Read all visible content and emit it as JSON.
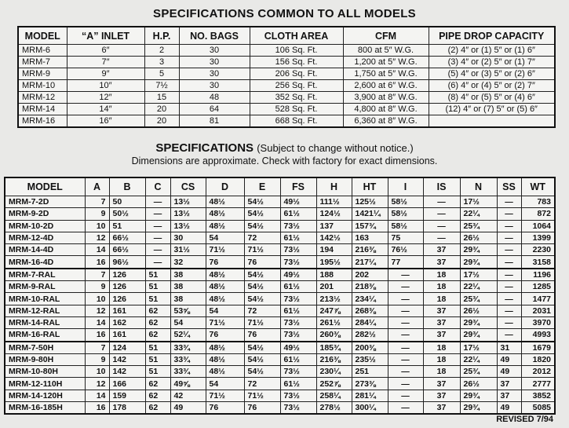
{
  "common": {
    "title": "SPECIFICATIONS COMMON TO ALL MODELS",
    "headers": [
      "MODEL",
      "“A” INLET",
      "H.P.",
      "NO. BAGS",
      "CLOTH AREA",
      "CFM",
      "PIPE DROP CAPACITY"
    ],
    "rows": [
      [
        "MRM-6",
        "6″",
        "2",
        "30",
        "106 Sq. Ft.",
        "800 at 5″ W.G.",
        "(2) 4″ or (1) 5″ or (1) 6″"
      ],
      [
        "MRM-7",
        "7″",
        "3",
        "30",
        "156 Sq. Ft.",
        "1,200 at 5″ W.G.",
        "(3) 4″ or (2) 5″ or (1) 7″"
      ],
      [
        "MRM-9",
        "9″",
        "5",
        "30",
        "206 Sq. Ft.",
        "1,750 at 5″ W.G.",
        "(5) 4″ or (3) 5″ or (2) 6″"
      ],
      [
        "MRM-10",
        "10″",
        "7½",
        "30",
        "256 Sq. Ft.",
        "2,600 at 6″ W.G.",
        "(6) 4″ or (4) 5″ or (2) 7″"
      ],
      [
        "MRM-12",
        "12″",
        "15",
        "48",
        "352 Sq. Ft.",
        "3,900 at 8″ W.G.",
        "(8) 4″ or (5) 5″ or (4) 6″"
      ],
      [
        "MRM-14",
        "14″",
        "20",
        "64",
        "528 Sq. Ft.",
        "4,800 at 8″ W.G.",
        "(12) 4″ or (7) 5″ or (5) 6″"
      ],
      [
        "MRM-16",
        "16″",
        "20",
        "81",
        "668 Sq. Ft.",
        "6,360 at 8″ W.G.",
        ""
      ]
    ]
  },
  "specs": {
    "title": "SPECIFICATIONS",
    "note": "(Subject to change without notice.)",
    "subtitle": "Dimensions are approximate. Check with factory for exact dimensions.",
    "headers": [
      "MODEL",
      "A",
      "B",
      "C",
      "CS",
      "D",
      "E",
      "FS",
      "H",
      "HT",
      "I",
      "IS",
      "N",
      "SS",
      "WT"
    ],
    "rows": [
      [
        "MRM-7-2D",
        "7",
        "50",
        "—",
        "13½",
        "48½",
        "54½",
        "49½",
        "111½",
        "125½",
        "58½",
        "—",
        "17½",
        "—",
        "783"
      ],
      [
        "MRM-9-2D",
        "9",
        "50½",
        "—",
        "13½",
        "48½",
        "54½",
        "61½",
        "124½",
        "1421¼",
        "58½",
        "—",
        "22¼",
        "—",
        "872"
      ],
      [
        "MRM-10-2D",
        "10",
        "51",
        "—",
        "13½",
        "48½",
        "54½",
        "73½",
        "137",
        "157¾",
        "58½",
        "—",
        "25¾",
        "—",
        "1064"
      ],
      [
        "MRM-12-4D",
        "12",
        "66½",
        "—",
        "30",
        "54",
        "72",
        "61½",
        "142½",
        "163",
        "75",
        "—",
        "26½",
        "—",
        "1399"
      ],
      [
        "MRM-14-4D",
        "14",
        "66½",
        "—",
        "31½",
        "71½",
        "71½",
        "73½",
        "194",
        "216⅜",
        "76½",
        "37",
        "29¾",
        "—",
        "2230"
      ],
      [
        "MRM-16-4D",
        "16",
        "96½",
        "—",
        "32",
        "76",
        "76",
        "73½",
        "195½",
        "217¼",
        "77",
        "37",
        "29¾",
        "—",
        "3158"
      ],
      [
        "MRM-7-RAL",
        "7",
        "126",
        "51",
        "38",
        "48½",
        "54½",
        "49½",
        "188",
        "202",
        "—",
        "18",
        "17½",
        "—",
        "1196"
      ],
      [
        "MRM-9-RAL",
        "9",
        "126",
        "51",
        "38",
        "48½",
        "54½",
        "61½",
        "201",
        "218⅜",
        "—",
        "18",
        "22¼",
        "—",
        "1285"
      ],
      [
        "MRM-10-RAL",
        "10",
        "126",
        "51",
        "38",
        "48½",
        "54½",
        "73½",
        "213½",
        "234¼",
        "—",
        "18",
        "25¾",
        "—",
        "1477"
      ],
      [
        "MRM-12-RAL",
        "12",
        "161",
        "62",
        "53⅝",
        "54",
        "72",
        "61½",
        "247⅞",
        "268⅜",
        "—",
        "37",
        "26½",
        "—",
        "2031"
      ],
      [
        "MRM-14-RAL",
        "14",
        "162",
        "62",
        "54",
        "71½",
        "71½",
        "73½",
        "261½",
        "284¼",
        "—",
        "37",
        "29¾",
        "—",
        "3970"
      ],
      [
        "MRM-16-RAL",
        "16",
        "161",
        "62",
        "52¼",
        "76",
        "76",
        "73½",
        "260⅜",
        "282½",
        "—",
        "37",
        "29¾",
        "—",
        "4993"
      ],
      [
        "MRM-7-50H",
        "7",
        "124",
        "51",
        "33¾",
        "48½",
        "54½",
        "49½",
        "185¾",
        "200⅜",
        "—",
        "18",
        "17½",
        "31",
        "1679"
      ],
      [
        "MRM-9-80H",
        "9",
        "142",
        "51",
        "33¾",
        "48½",
        "54½",
        "61½",
        "216⅜",
        "235½",
        "—",
        "18",
        "22¼",
        "49",
        "1820"
      ],
      [
        "MRM-10-80H",
        "10",
        "142",
        "51",
        "33¾",
        "48½",
        "54½",
        "73½",
        "230¼",
        "251",
        "—",
        "18",
        "25¾",
        "49",
        "2012"
      ],
      [
        "MRM-12-110H",
        "12",
        "166",
        "62",
        "49⅝",
        "54",
        "72",
        "61½",
        "252⅞",
        "273⅜",
        "—",
        "37",
        "26½",
        "37",
        "2777"
      ],
      [
        "MRM-14-120H",
        "14",
        "159",
        "62",
        "42",
        "71½",
        "71½",
        "73½",
        "258¼",
        "281¼",
        "—",
        "37",
        "29¾",
        "37",
        "3852"
      ],
      [
        "MRM-16-185H",
        "16",
        "178",
        "62",
        "49",
        "76",
        "76",
        "73½",
        "278½",
        "300¼",
        "—",
        "37",
        "29¾",
        "49",
        "5085"
      ]
    ]
  },
  "revised": "REVISED 7/94"
}
